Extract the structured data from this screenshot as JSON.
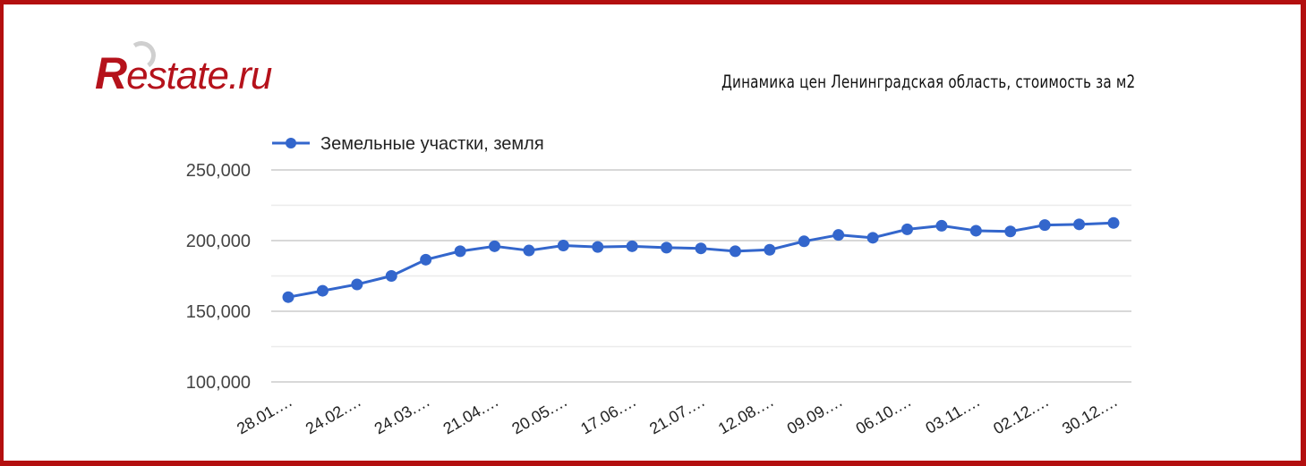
{
  "logo": {
    "r": "R",
    "rest": "estate.ru"
  },
  "title": "Динамика цен Ленинградская область, стоимость за м2",
  "colors": {
    "border": "#b30f0f",
    "series": "#3366cc",
    "grid": "#cccccc",
    "grid_minor": "#ebebeb",
    "logo": "#b5121b"
  },
  "chart_data": {
    "type": "line",
    "title": "Динамика цен Ленинградская область, стоимость за м2",
    "xlabel": "",
    "ylabel": "",
    "ylim": [
      100000,
      250000
    ],
    "yticks": [
      "250,000",
      "200,000",
      "150,000",
      "100,000"
    ],
    "grid": true,
    "legend_position": "top",
    "x_tick_labels": [
      "28.01.…",
      "24.02.…",
      "24.03.…",
      "21.04.…",
      "20.05.…",
      "17.06.…",
      "21.07.…",
      "12.08.…",
      "09.09.…",
      "06.10.…",
      "03.11.…",
      "02.12.…",
      "30.12.…"
    ],
    "series": [
      {
        "name": "Земельные участки, земля",
        "values": [
          160000,
          164500,
          169000,
          175000,
          186500,
          192500,
          196000,
          193000,
          196500,
          195500,
          196000,
          195000,
          194500,
          192500,
          193500,
          199500,
          204000,
          202000,
          208000,
          210500,
          207000,
          206500,
          211000,
          211500,
          212500
        ]
      }
    ]
  }
}
